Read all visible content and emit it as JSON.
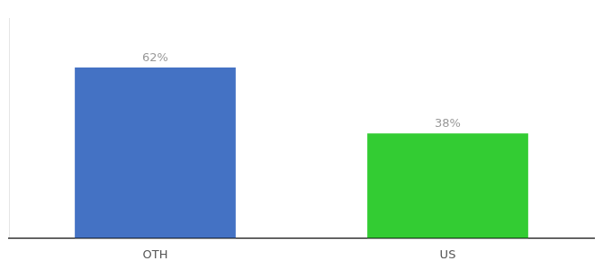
{
  "chart_data": {
    "type": "bar",
    "categories": [
      "OTH",
      "US"
    ],
    "values": [
      62,
      38
    ],
    "value_labels": [
      "62%",
      "38%"
    ],
    "colors": [
      "#4472C4",
      "#33CC33"
    ],
    "ylim": [
      0,
      80
    ],
    "data_labels": true,
    "tick_labels": "x",
    "grid": false
  }
}
